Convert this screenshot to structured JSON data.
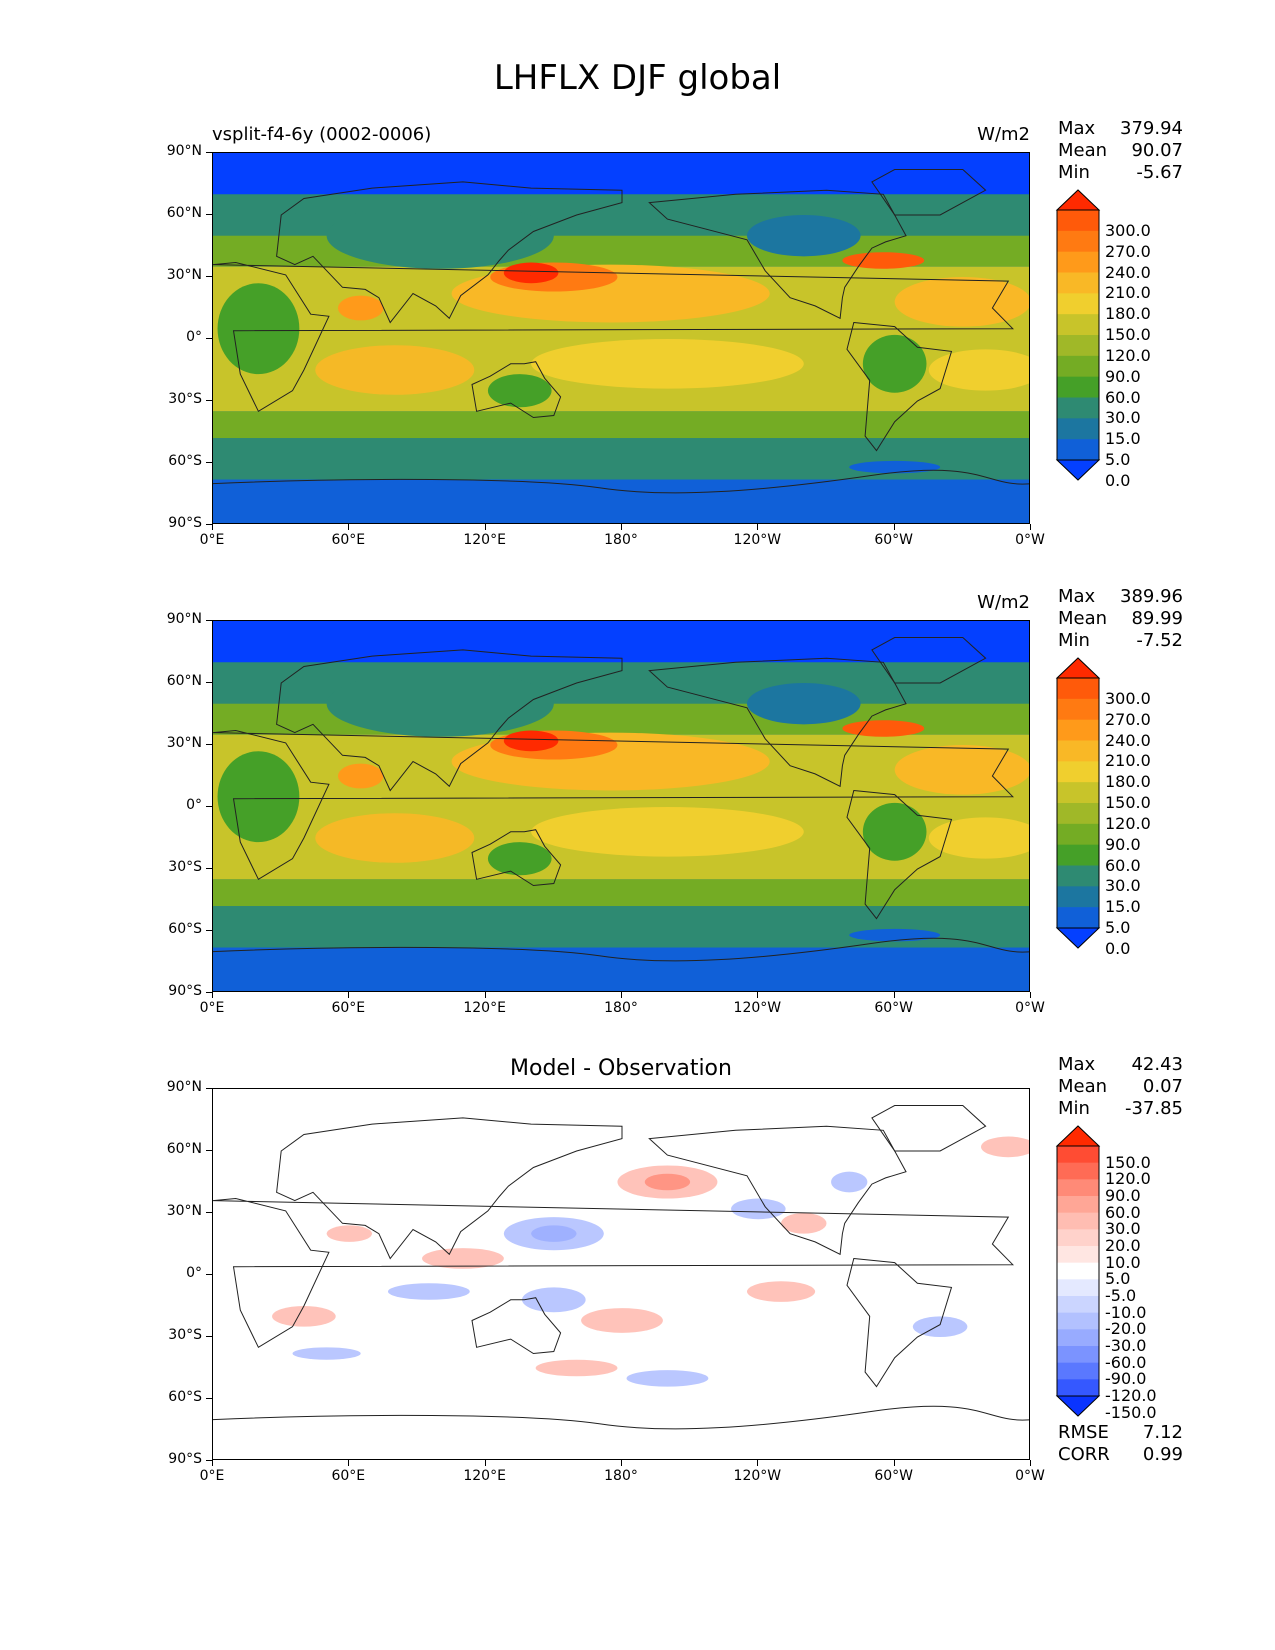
{
  "figure": {
    "title": "LHFLX DJF global"
  },
  "axes": {
    "lat_ticks": [
      "90°N",
      "60°N",
      "30°N",
      "0°",
      "30°S",
      "60°S",
      "90°S"
    ],
    "lon_ticks": [
      "0°E",
      "60°E",
      "120°E",
      "180°",
      "120°W",
      "60°W",
      "0°W"
    ]
  },
  "panels": [
    {
      "id": "model",
      "left_label": "vsplit-f4-6y (0002-0006)",
      "center_title": "",
      "units": "W/m2",
      "stats": [
        {
          "label": "Max",
          "value": "379.94"
        },
        {
          "label": "Mean",
          "value": "90.07"
        },
        {
          "label": "Min",
          "value": "-5.67"
        }
      ],
      "colorbar": {
        "levels": [
          "300.0",
          "270.0",
          "240.0",
          "210.0",
          "180.0",
          "150.0",
          "120.0",
          "90.0",
          "60.0",
          "30.0",
          "15.0",
          "5.0",
          "0.0"
        ],
        "colors": [
          "#ff2a00",
          "#ff5a0a",
          "#ff7a12",
          "#ff9a1a",
          "#f9b826",
          "#f0cf2e",
          "#c8c42a",
          "#a0b828",
          "#74ac24",
          "#45a028",
          "#2e8a72",
          "#1c76a0",
          "#1060d8",
          "#0440ff"
        ]
      }
    },
    {
      "id": "obs",
      "left_label": "",
      "center_title": "",
      "units": "W/m2",
      "stats": [
        {
          "label": "Max",
          "value": "389.96"
        },
        {
          "label": "Mean",
          "value": "89.99"
        },
        {
          "label": "Min",
          "value": "-7.52"
        }
      ],
      "colorbar": {
        "levels": [
          "300.0",
          "270.0",
          "240.0",
          "210.0",
          "180.0",
          "150.0",
          "120.0",
          "90.0",
          "60.0",
          "30.0",
          "15.0",
          "5.0",
          "0.0"
        ],
        "colors": [
          "#ff2a00",
          "#ff5a0a",
          "#ff7a12",
          "#ff9a1a",
          "#f9b826",
          "#f0cf2e",
          "#c8c42a",
          "#a0b828",
          "#74ac24",
          "#45a028",
          "#2e8a72",
          "#1c76a0",
          "#1060d8",
          "#0440ff"
        ]
      }
    },
    {
      "id": "diff",
      "left_label": "",
      "center_title": "Model - Observation",
      "units": "",
      "stats": [
        {
          "label": "Max",
          "value": "42.43"
        },
        {
          "label": "Mean",
          "value": "0.07"
        },
        {
          "label": "Min",
          "value": "-37.85"
        }
      ],
      "extra_stats": [
        {
          "label": "RMSE",
          "value": "7.12"
        },
        {
          "label": "CORR",
          "value": "0.99"
        }
      ],
      "colorbar": {
        "levels": [
          "150.0",
          "120.0",
          "90.0",
          "60.0",
          "30.0",
          "20.0",
          "10.0",
          "5.0",
          "-5.0",
          "-10.0",
          "-20.0",
          "-30.0",
          "-60.0",
          "-90.0",
          "-120.0",
          "-150.0"
        ],
        "colors": [
          "#ff2a00",
          "#ff4c33",
          "#ff6b55",
          "#ff8a77",
          "#ffa696",
          "#ffbdb2",
          "#ffd2cb",
          "#ffe6e2",
          "#ffffff",
          "#e4e9ff",
          "#cbd5ff",
          "#b2c1ff",
          "#98abff",
          "#7b93ff",
          "#5a78ff",
          "#3558ff",
          "#0a34ff"
        ]
      }
    }
  ]
}
